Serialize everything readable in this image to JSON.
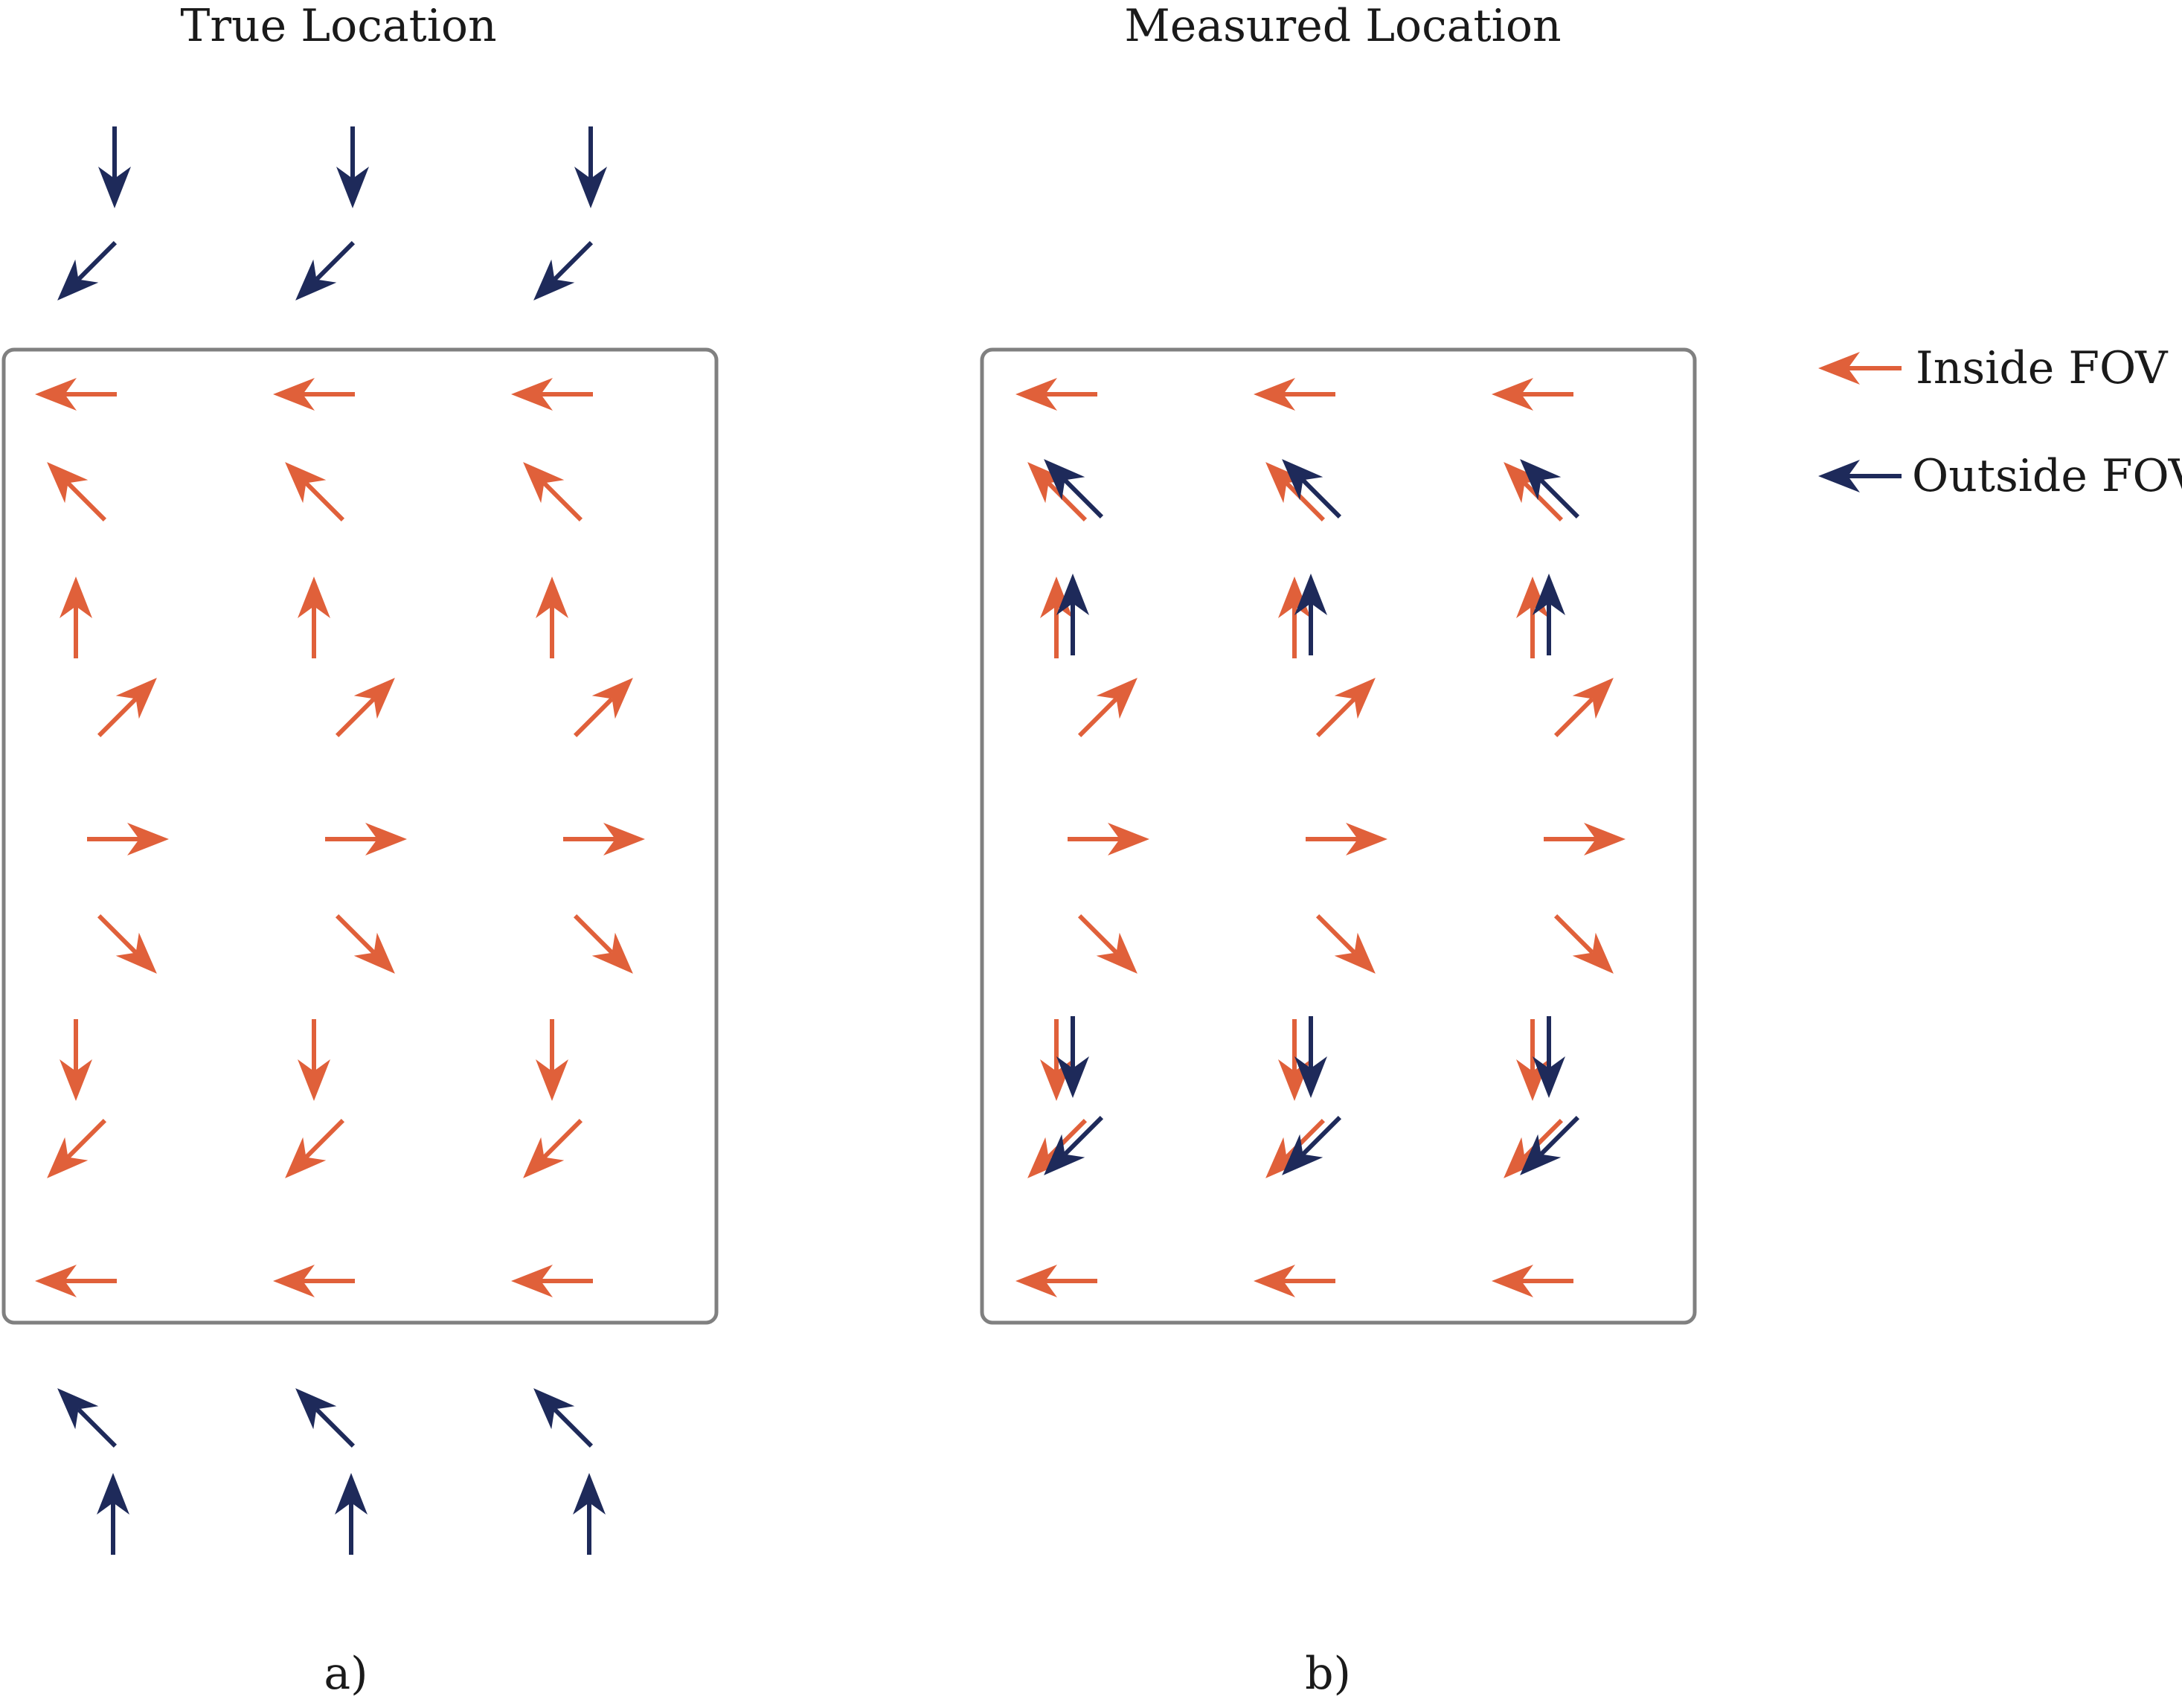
{
  "colors": {
    "inside": "#E0603A",
    "outside": "#1E2A5A",
    "frame": "#808080"
  },
  "panel_a": {
    "title": "True Location",
    "caption": "a)"
  },
  "panel_b": {
    "title": "Measured Location",
    "caption": "b)"
  },
  "legend": {
    "inside_label": "Inside FOV",
    "outside_label": "Outside FOV"
  },
  "fields": {
    "true_inside_angles_deg": [
      180,
      135,
      90,
      45,
      0,
      -45,
      -90,
      -135,
      180
    ],
    "true_outside_top_angles_deg": [
      -90,
      -135
    ],
    "true_outside_bottom_angles_deg": [
      135,
      90
    ],
    "measured_inside_angles_deg": [
      180,
      135,
      90,
      45,
      0,
      -45,
      -90,
      -135,
      180
    ],
    "measured_outside_overlay_angles_deg": [
      135,
      90,
      -90,
      -135
    ]
  }
}
